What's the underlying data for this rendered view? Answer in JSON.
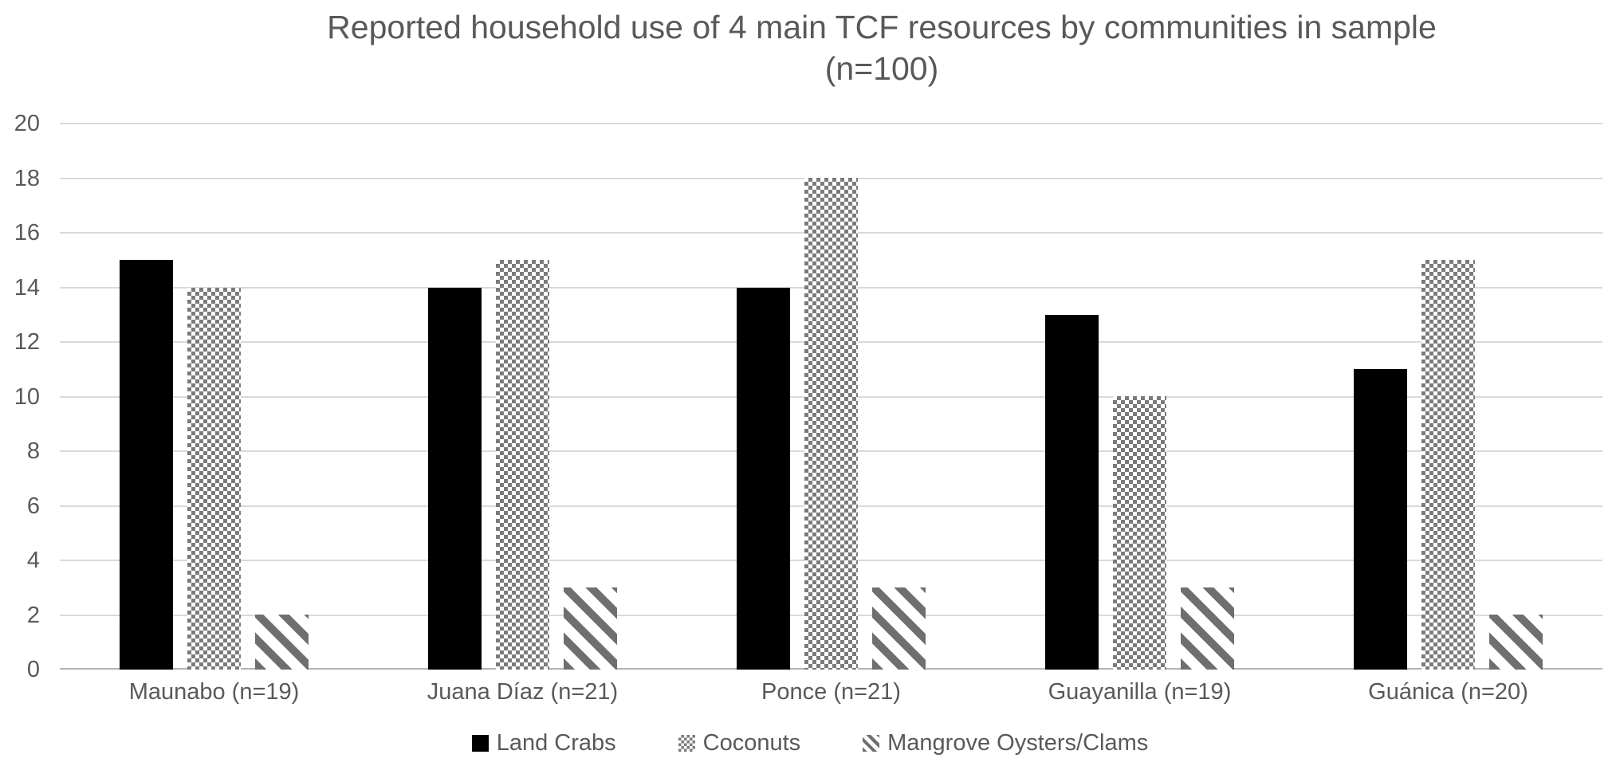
{
  "chart_data": {
    "type": "bar",
    "title": "Reported household use of 4 main TCF resources by communities in sample (n=100)",
    "title_lines": [
      "Reported household use of 4 main TCF resources by communities in sample",
      "(n=100)"
    ],
    "categories": [
      "Maunabo (n=19)",
      "Juana Díaz (n=21)",
      "Ponce (n=21)",
      "Guayanilla (n=19)",
      "Guánica (n=20)"
    ],
    "series": [
      {
        "name": "Land Crabs",
        "pattern": "solid-black",
        "values": [
          15,
          14,
          14,
          13,
          11
        ]
      },
      {
        "name": "Coconuts",
        "pattern": "dotted-diamond",
        "values": [
          14,
          15,
          18,
          10,
          15
        ]
      },
      {
        "name": "Mangrove Oysters/Clams",
        "pattern": "diagonal-stripes",
        "values": [
          2,
          3,
          3,
          3,
          2
        ]
      }
    ],
    "xlabel": "",
    "ylabel": "",
    "ylim": [
      0,
      20
    ],
    "ytick_step": 2,
    "yticks": [
      0,
      2,
      4,
      6,
      8,
      10,
      12,
      14,
      16,
      18,
      20
    ],
    "grid": true,
    "legend_position": "bottom",
    "colors": {
      "text": "#595959",
      "gridline": "#d9d9d9",
      "axis_line": "#b3b3b3",
      "bar_black": "#000000",
      "pattern_dots_gray": "#7b7b7b",
      "pattern_stripe_gray": "#6f6f6f",
      "background": "#ffffff"
    }
  }
}
